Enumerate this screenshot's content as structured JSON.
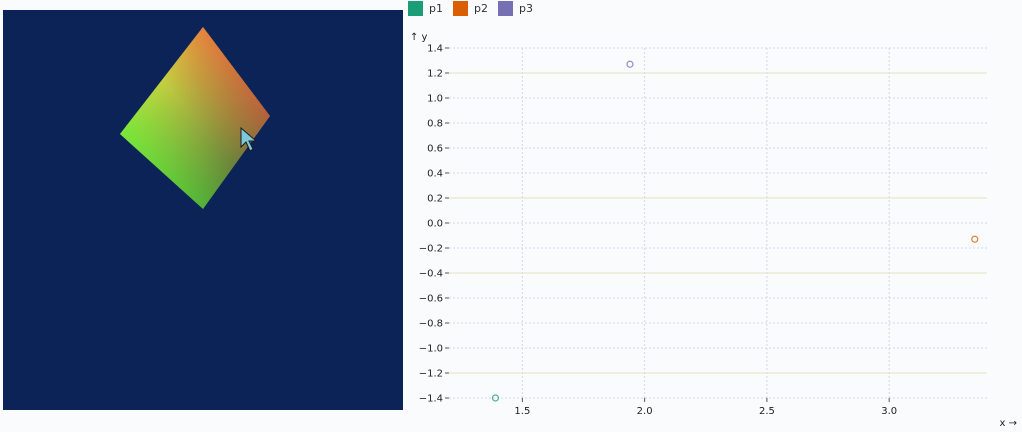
{
  "chart_data": {
    "type": "scatter",
    "xlabel": "x →",
    "ylabel": "↑ y",
    "xlim": [
      1.2,
      3.4
    ],
    "ylim": [
      -1.4,
      1.4
    ],
    "x_ticks": [
      1.5,
      2.0,
      2.5,
      3.0
    ],
    "x_tick_labels": [
      "1.5",
      "2.0",
      "2.5",
      "3.0"
    ],
    "y_ticks": [
      1.4,
      1.2,
      1.0,
      0.8,
      0.6,
      0.4,
      0.2,
      0.0,
      -0.2,
      -0.4,
      -0.6,
      -0.8,
      -1.0,
      -1.2,
      -1.4
    ],
    "y_tick_labels": [
      "1.4",
      "1.2",
      "1.0",
      "0.8",
      "0.6",
      "0.4",
      "0.2",
      "0.0",
      "−0.2",
      "−0.4",
      "−0.6",
      "−0.8",
      "−1.0",
      "−1.2",
      "−1.4"
    ],
    "grid": true,
    "legend_position": "top-left",
    "series": [
      {
        "name": "p1",
        "color": "#1b9e77",
        "points": [
          {
            "x": 1.39,
            "y": -1.4
          }
        ]
      },
      {
        "name": "p2",
        "color": "#d95f02",
        "points": [
          {
            "x": 3.35,
            "y": -0.13
          }
        ]
      },
      {
        "name": "p3",
        "color": "#7570b3",
        "points": [
          {
            "x": 1.94,
            "y": 1.27
          }
        ]
      }
    ]
  },
  "canvas": {
    "background": "#0c2358",
    "gradient_colors": [
      "#ffff44",
      "#ff3a3a",
      "#33ff33",
      "#3b5a38"
    ]
  },
  "colors": {
    "grid": "#d4d4ee",
    "zero_line": "#e6e1c0",
    "axis": "#555555"
  }
}
